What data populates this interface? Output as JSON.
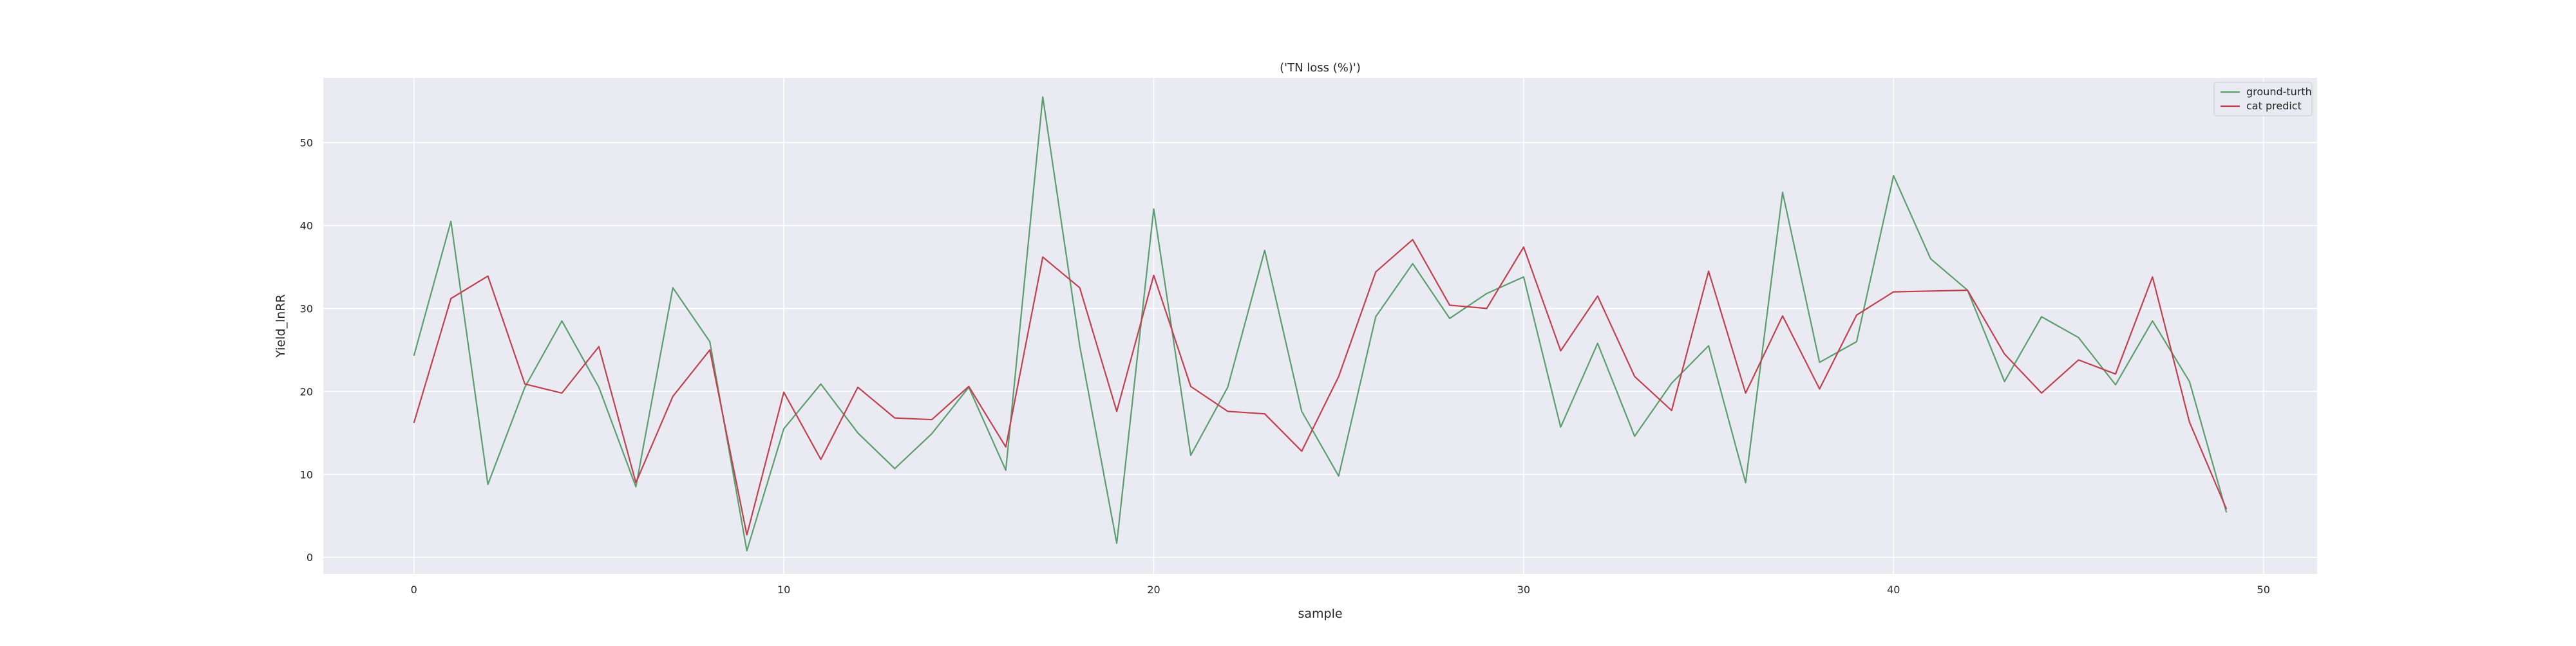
{
  "chart_data": {
    "type": "line",
    "title": "('TN loss (%)')",
    "xlabel": "sample",
    "ylabel": "Yield_lnRR",
    "xlim": [
      -2.45,
      51.45
    ],
    "ylim": [
      -2.0,
      57.8
    ],
    "x_ticks": [
      0,
      10,
      20,
      30,
      40,
      50
    ],
    "y_ticks": [
      0,
      10,
      20,
      30,
      40,
      50
    ],
    "grid": true,
    "legend_position": "top-right",
    "x": [
      0,
      1,
      2,
      3,
      4,
      5,
      6,
      7,
      8,
      9,
      10,
      11,
      12,
      13,
      14,
      15,
      16,
      17,
      18,
      19,
      20,
      21,
      22,
      23,
      24,
      25,
      26,
      27,
      28,
      29,
      30,
      31,
      32,
      33,
      34,
      35,
      36,
      37,
      38,
      39,
      40,
      41,
      42,
      43,
      44,
      45,
      46,
      47,
      48,
      49
    ],
    "series": [
      {
        "name": "ground-turth",
        "color": "#5a9e6e",
        "values": [
          24.3,
          40.5,
          8.8,
          20.5,
          28.5,
          20.5,
          8.5,
          32.5,
          26.0,
          0.8,
          15.5,
          20.9,
          15.0,
          10.7,
          14.9,
          20.5,
          10.5,
          55.5,
          25.5,
          1.7,
          42.0,
          12.3,
          20.5,
          37.0,
          17.6,
          9.8,
          29.0,
          35.4,
          28.8,
          31.8,
          33.8,
          15.7,
          25.8,
          14.6,
          21.0,
          25.5,
          9.0,
          44.0,
          23.5,
          26.0,
          46.0,
          36.0,
          32.2,
          21.2,
          29.0,
          26.5,
          20.8,
          28.5,
          21.2,
          5.4
        ]
      },
      {
        "name": "cat predict",
        "color": "#c1404d",
        "values": [
          16.2,
          31.2,
          33.9,
          20.9,
          19.8,
          25.4,
          9.0,
          19.4,
          25.0,
          2.7,
          19.9,
          11.8,
          20.5,
          16.8,
          16.6,
          20.6,
          13.3,
          36.2,
          32.5,
          17.6,
          34.0,
          20.6,
          17.6,
          17.3,
          12.8,
          21.8,
          34.4,
          38.3,
          30.4,
          30.0,
          37.4,
          24.9,
          31.5,
          21.8,
          17.7,
          34.5,
          19.8,
          29.1,
          20.3,
          29.2,
          32.0,
          32.1,
          32.2,
          24.5,
          19.8,
          23.8,
          22.1,
          33.8,
          16.3,
          5.8
        ]
      }
    ]
  }
}
